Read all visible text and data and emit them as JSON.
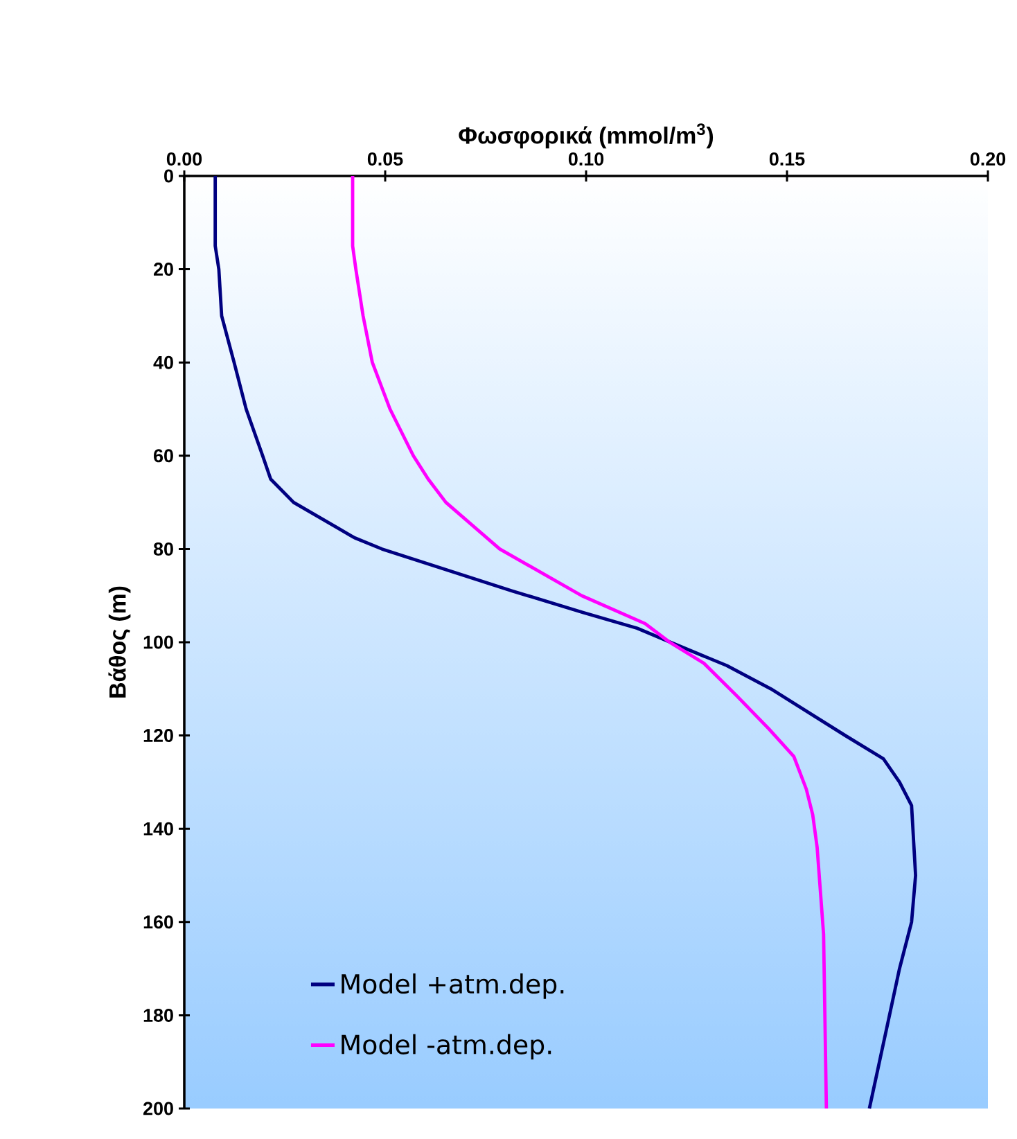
{
  "chart_data": {
    "type": "line",
    "xlabel": "Φωσφορικά (mmol/m$^{3}$)",
    "ylabel": "Βάθος (m)",
    "xlim": [
      0,
      0.2
    ],
    "ylim": [
      200,
      0
    ],
    "xticks": [
      {
        "value": 0,
        "label": "0.00"
      },
      {
        "value": 0.05,
        "label": "0.05"
      },
      {
        "value": 0.1,
        "label": "0.10"
      },
      {
        "value": 0.15,
        "label": "0.15"
      },
      {
        "value": 0.2,
        "label": "0.20"
      }
    ],
    "yticks": [
      0,
      20,
      40,
      60,
      80,
      100,
      120,
      140,
      160,
      180,
      200
    ],
    "legend": "bottom left",
    "marker": "none",
    "line_style": "solid",
    "series": [
      {
        "name": "Model +atm.dep.",
        "color": "#000080",
        "x": [
          0.0077,
          0.0077,
          0.0086,
          0.0093,
          0.0124,
          0.0154,
          0.0195,
          0.0215,
          0.0272,
          0.0424,
          0.0492,
          0.0816,
          0.0992,
          0.1127,
          0.121,
          0.135,
          0.146,
          0.1645,
          0.174,
          0.178,
          0.181,
          0.182,
          0.181,
          0.178,
          0.1755,
          0.173,
          0.1705
        ],
        "values": [
          0,
          15,
          20,
          30,
          40,
          50,
          60,
          65,
          70,
          77.6,
          80,
          89,
          93.6,
          97,
          100,
          105,
          110,
          120,
          125,
          130,
          135,
          150,
          160,
          170,
          180,
          190,
          200
        ]
      },
      {
        "name": "Model -atm.dep.",
        "color": "#ff00ff",
        "x": [
          0.0419,
          0.0419,
          0.0427,
          0.0445,
          0.0468,
          0.0512,
          0.057,
          0.0607,
          0.0651,
          0.0785,
          0.0989,
          0.1147,
          0.1208,
          0.1293,
          0.1375,
          0.1455,
          0.1517,
          0.1548,
          0.1564,
          0.1575,
          0.1591,
          0.1598
        ],
        "values": [
          0,
          15,
          20,
          30,
          40,
          50,
          60,
          65,
          70,
          80,
          90,
          96,
          100,
          104.5,
          111.5,
          118.6,
          124.5,
          131.5,
          137,
          144,
          162.6,
          200
        ]
      }
    ]
  }
}
